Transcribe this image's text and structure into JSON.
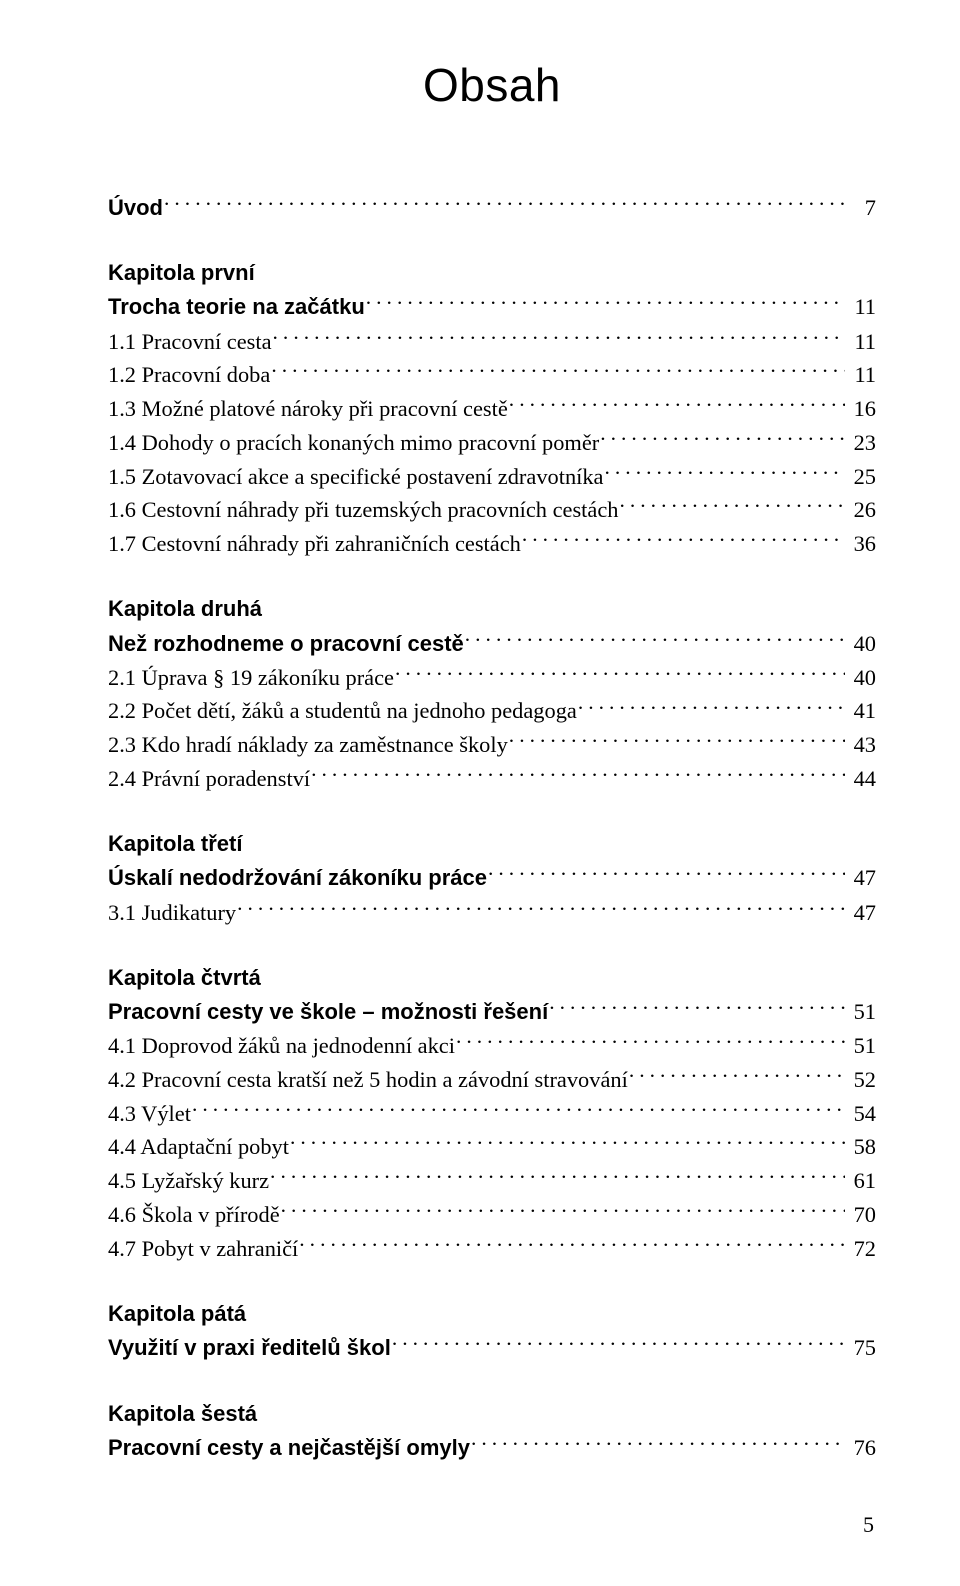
{
  "title": "Obsah",
  "page_number": "5",
  "colors": {
    "text": "#000000",
    "background": "#ffffff"
  },
  "typography": {
    "body_family": "Book Antiqua / Palatino (serif)",
    "heading_family": "Arial / Helvetica (sans-serif)",
    "title_size_pt": 34,
    "body_size_pt": 16,
    "heading_size_pt": 16,
    "heading_weight": "bold"
  },
  "toc": [
    {
      "type": "entry",
      "label": "Úvod",
      "page": "7",
      "bold": true
    },
    {
      "type": "spacer"
    },
    {
      "type": "heading",
      "label": "Kapitola první"
    },
    {
      "type": "entry",
      "label": "Trocha teorie na začátku",
      "page": "11",
      "bold": true
    },
    {
      "type": "entry",
      "label": "1.1  Pracovní cesta",
      "page": "11"
    },
    {
      "type": "entry",
      "label": "1.2  Pracovní doba",
      "page": "11"
    },
    {
      "type": "entry",
      "label": "1.3  Možné platové nároky při pracovní cestě",
      "page": "16"
    },
    {
      "type": "entry",
      "label": "1.4  Dohody o pracích konaných mimo pracovní poměr",
      "page": "23"
    },
    {
      "type": "entry",
      "label": "1.5  Zotavovací akce a specifické postavení zdravotníka",
      "page": "25"
    },
    {
      "type": "entry",
      "label": "1.6  Cestovní náhrady při tuzemských pracovních cestách",
      "page": "26"
    },
    {
      "type": "entry",
      "label": "1.7  Cestovní náhrady při zahraničních cestách",
      "page": "36"
    },
    {
      "type": "spacer"
    },
    {
      "type": "heading",
      "label": "Kapitola druhá"
    },
    {
      "type": "entry",
      "label": "Než rozhodneme o pracovní cestě",
      "page": "40",
      "bold": true
    },
    {
      "type": "entry",
      "label": "2.1  Úprava § 19 zákoníku práce",
      "page": "40"
    },
    {
      "type": "entry",
      "label": "2.2  Počet dětí, žáků a studentů na jednoho pedagoga",
      "page": "41"
    },
    {
      "type": "entry",
      "label": "2.3  Kdo hradí náklady za zaměstnance školy",
      "page": "43"
    },
    {
      "type": "entry",
      "label": "2.4  Právní poradenství",
      "page": "44"
    },
    {
      "type": "spacer"
    },
    {
      "type": "heading",
      "label": "Kapitola třetí"
    },
    {
      "type": "entry",
      "label": "Úskalí nedodržování zákoníku práce",
      "page": "47",
      "bold": true
    },
    {
      "type": "entry",
      "label": "3.1  Judikatury",
      "page": "47"
    },
    {
      "type": "spacer"
    },
    {
      "type": "heading",
      "label": "Kapitola čtvrtá"
    },
    {
      "type": "entry",
      "label": "Pracovní cesty ve škole – možnosti řešení",
      "page": "51",
      "bold": true
    },
    {
      "type": "entry",
      "label": "4.1  Doprovod žáků na jednodenní akci",
      "page": "51"
    },
    {
      "type": "entry",
      "label": "4.2  Pracovní cesta kratší než 5 hodin a závodní stravování",
      "page": "52"
    },
    {
      "type": "entry",
      "label": "4.3  Výlet",
      "page": "54"
    },
    {
      "type": "entry",
      "label": "4.4  Adaptační pobyt",
      "page": "58"
    },
    {
      "type": "entry",
      "label": "4.5  Lyžařský kurz",
      "page": "61"
    },
    {
      "type": "entry",
      "label": "4.6  Škola v přírodě",
      "page": "70"
    },
    {
      "type": "entry",
      "label": "4.7  Pobyt v zahraničí",
      "page": "72"
    },
    {
      "type": "spacer"
    },
    {
      "type": "heading",
      "label": "Kapitola pátá"
    },
    {
      "type": "entry",
      "label": "Využití v praxi ředitelů škol",
      "page": "75",
      "bold": true
    },
    {
      "type": "spacer"
    },
    {
      "type": "heading",
      "label": "Kapitola šestá"
    },
    {
      "type": "entry",
      "label": "Pracovní cesty a nejčastější omyly",
      "page": "76",
      "bold": true
    }
  ]
}
